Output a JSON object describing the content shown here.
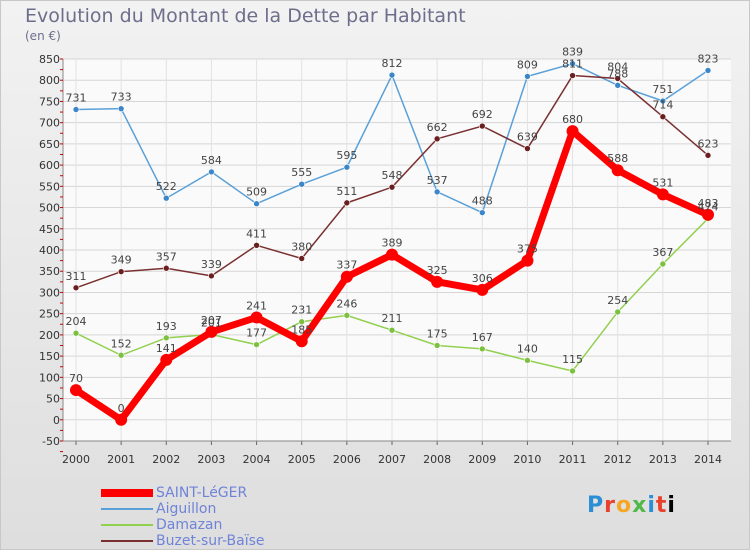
{
  "title": "Evolution du Montant de la Dette par Habitant",
  "subtitle": "(en €)",
  "logo": "Proxiti",
  "chart_data": {
    "type": "line",
    "title": "Evolution du Montant de la Dette par Habitant",
    "ylabel": "(en €)",
    "xlabel": "",
    "x": [
      "2000",
      "2001",
      "2002",
      "2003",
      "2004",
      "2005",
      "2006",
      "2007",
      "2008",
      "2009",
      "2010",
      "2011",
      "2012",
      "2013",
      "2014"
    ],
    "ylim": [
      -50,
      850
    ],
    "yticks": [
      -50,
      0,
      50,
      100,
      150,
      200,
      250,
      300,
      350,
      400,
      450,
      500,
      550,
      600,
      650,
      700,
      750,
      800,
      850
    ],
    "grid": true,
    "legend": "bottom-left",
    "series": [
      {
        "name": "SAINT-LéGER",
        "color": "#ff0000",
        "width": 7,
        "values": [
          70,
          0,
          141,
          207,
          241,
          185,
          337,
          389,
          325,
          306,
          375,
          680,
          588,
          531,
          483
        ]
      },
      {
        "name": "Aiguillon",
        "color": "#5aa0d8",
        "width": 1.5,
        "values": [
          731,
          733,
          522,
          584,
          509,
          555,
          595,
          812,
          537,
          488,
          809,
          839,
          788,
          751,
          823
        ]
      },
      {
        "name": "Damazan",
        "color": "#92d050",
        "width": 1.5,
        "values": [
          204,
          152,
          193,
          201,
          177,
          231,
          246,
          211,
          175,
          167,
          140,
          115,
          254,
          367,
          474
        ]
      },
      {
        "name": "Buzet-sur-Baïse",
        "color": "#7a3030",
        "width": 1.5,
        "values": [
          311,
          349,
          357,
          339,
          411,
          380,
          511,
          548,
          662,
          692,
          639,
          811,
          804,
          714,
          623
        ]
      }
    ],
    "tick_labels": [
      "-50",
      "0",
      "50",
      "100",
      "150",
      "200",
      "250",
      "300",
      "350",
      "400",
      "450",
      "500",
      "550",
      "600",
      "650",
      "700",
      "750",
      "800",
      "850"
    ]
  }
}
